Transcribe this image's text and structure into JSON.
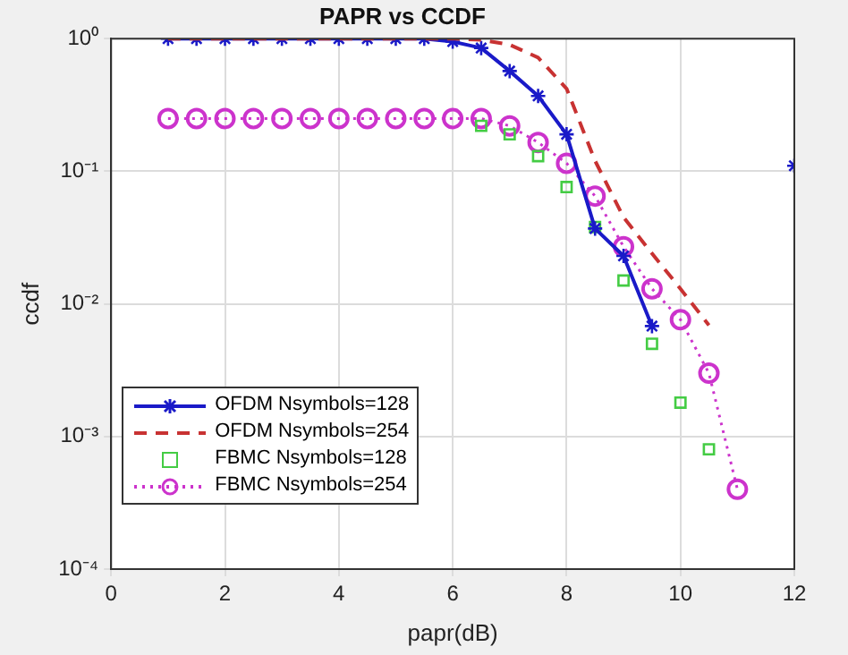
{
  "chart_data": {
    "type": "line",
    "title": "PAPR vs CCDF",
    "xlabel": "papr(dB)",
    "ylabel": "ccdf",
    "xlim": [
      0,
      12
    ],
    "xticks": [
      0,
      2,
      4,
      6,
      8,
      10,
      12
    ],
    "ylim": [
      0.0001,
      1
    ],
    "yticks": [
      {
        "value": 0.0001,
        "label": "10⁻⁴"
      },
      {
        "value": 0.001,
        "label": "10⁻³"
      },
      {
        "value": 0.01,
        "label": "10⁻²"
      },
      {
        "value": 0.1,
        "label": "10⁻¹"
      },
      {
        "value": 1,
        "label": "10⁰"
      }
    ],
    "log": "y",
    "grid": true,
    "legend": "bottom left",
    "series": [
      {
        "name": "OFDM Nsymbols=128",
        "color": "#1a1ac8",
        "marker": "cross",
        "line_style": "solid",
        "x": [
          1,
          1.5,
          2,
          2.5,
          3,
          3.5,
          4,
          4.5,
          5,
          5.5,
          6,
          6.5,
          7,
          7.5,
          8,
          8.5,
          9,
          9.5,
          10,
          12
        ],
        "values": [
          1,
          1,
          1,
          1,
          1,
          1,
          1,
          1,
          1,
          1,
          0.95,
          0.85,
          0.57,
          0.37,
          0.19,
          0.037,
          0.023,
          0.0068,
          null,
          0.11
        ]
      },
      {
        "name": "OFDM Nsymbols=254",
        "color": "#c83232",
        "marker": "none",
        "line_style": "dashed",
        "x": [
          1,
          1.5,
          2,
          2.5,
          3,
          3.5,
          4,
          4.5,
          5,
          5.5,
          6,
          6.5,
          7,
          7.5,
          8,
          8.5,
          9,
          9.5,
          10,
          10.5
        ],
        "values": [
          1,
          1,
          1,
          1,
          1,
          1,
          1,
          1,
          1,
          1,
          1,
          0.98,
          0.9,
          0.72,
          0.42,
          0.12,
          0.045,
          0.024,
          0.013,
          0.0069
        ]
      },
      {
        "name": "FBMC Nsymbols=128",
        "type": "scatter",
        "color": "#44cc44",
        "marker": "square",
        "x": [
          6.5,
          7,
          7.5,
          8,
          8.5,
          9,
          9.5,
          10,
          10.5
        ],
        "values": [
          0.22,
          0.19,
          0.13,
          0.076,
          0.038,
          0.015,
          0.005,
          0.0018,
          0.0008
        ]
      },
      {
        "name": "FBMC Nsymbols=254",
        "color": "#cc33cc",
        "marker": "circle",
        "line_style": "dotted",
        "x": [
          1,
          1.5,
          2,
          2.5,
          3,
          3.5,
          4,
          4.5,
          5,
          5.5,
          6,
          6.5,
          7,
          7.5,
          8,
          8.5,
          9,
          9.5,
          10,
          10.5,
          11
        ],
        "values": [
          0.25,
          0.25,
          0.25,
          0.25,
          0.25,
          0.25,
          0.25,
          0.25,
          0.25,
          0.25,
          0.25,
          0.25,
          0.22,
          0.165,
          0.115,
          0.065,
          0.027,
          0.013,
          0.0076,
          0.003,
          0.0004
        ]
      }
    ]
  }
}
